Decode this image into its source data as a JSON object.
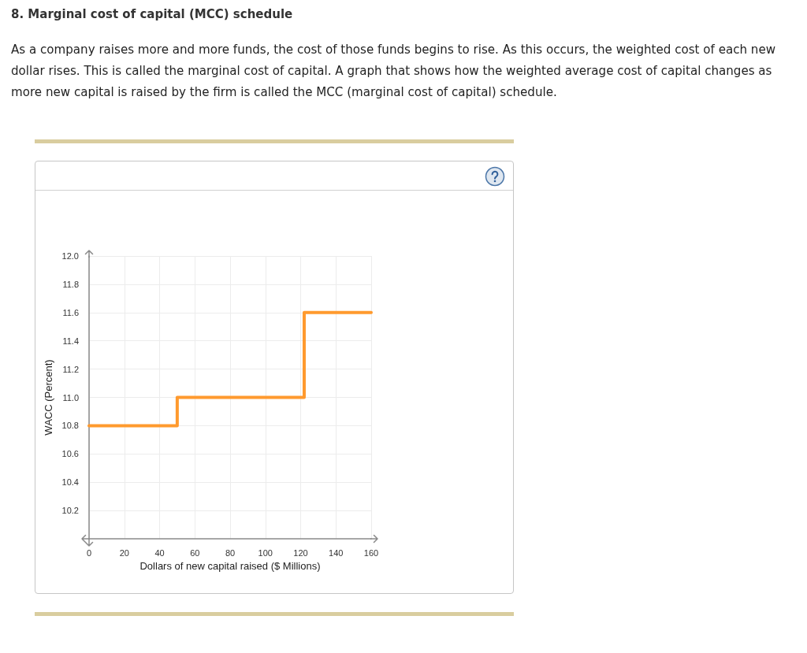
{
  "chart_data": {
    "type": "step",
    "title": "8. Marginal cost of capital (MCC) schedule",
    "subtitle": "As a company raises more and more funds, the cost of those funds begins to rise. As this occurs, the weighted cost of each new dollar rises. This is called the marginal cost of capital. A graph that shows how the weighted average cost of capital changes as more new capital is raised by the firm is called the MCC (marginal cost of capital) schedule.",
    "xlabel": "Dollars of new capital raised ($ Millions)",
    "ylabel": "WACC (Percent)",
    "x": [
      0,
      50,
      122,
      160
    ],
    "values": [
      10.8,
      11.0,
      11.6,
      11.6
    ],
    "color": "#ff9a2e",
    "xlim": [
      0,
      160
    ],
    "xticks": [
      0,
      20,
      40,
      60,
      80,
      100,
      120,
      140,
      160
    ],
    "ylim": [
      10,
      12
    ],
    "yticks": [
      10.2,
      10.4,
      10.6,
      10.8,
      {
        "value": 11,
        "label": "11.0"
      },
      11.2,
      11.4,
      11.6,
      11.8,
      {
        "value": 12,
        "label": "12.0"
      }
    ],
    "grid": true,
    "marker": "none",
    "line_style": "solid"
  }
}
